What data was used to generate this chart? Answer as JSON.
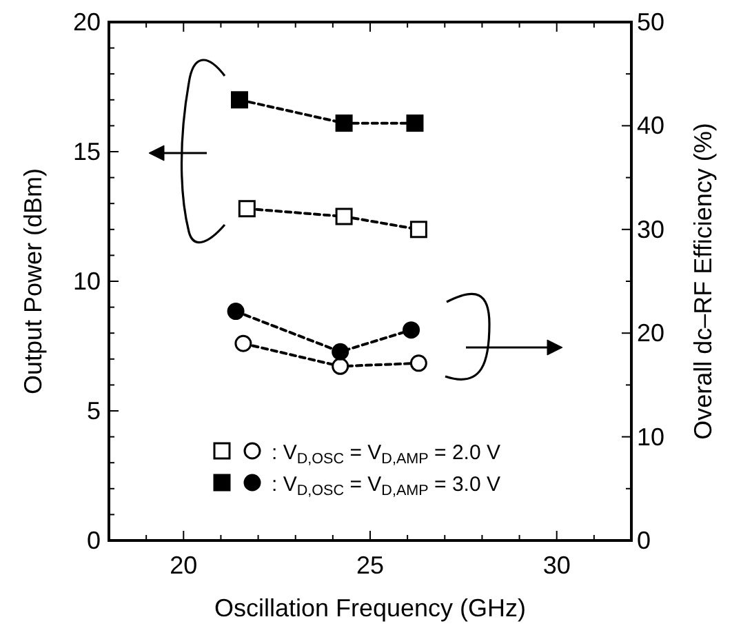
{
  "chart_data": {
    "type": "line",
    "xlabel": "Oscillation Frequency  (GHz)",
    "ylabel": "Output Power  (dBm)",
    "y2label": "Overall dc–RF Efficiency  (%)",
    "xlim": [
      18,
      32
    ],
    "xticks": [
      {
        "value": 18,
        "label": null
      },
      {
        "value": 19,
        "label": null
      },
      20,
      {
        "value": 21,
        "label": null
      },
      {
        "value": 22,
        "label": null
      },
      {
        "value": 23,
        "label": null
      },
      {
        "value": 24,
        "label": null
      },
      25,
      {
        "value": 26,
        "label": null
      },
      {
        "value": 27,
        "label": null
      },
      {
        "value": 28,
        "label": null
      },
      {
        "value": 29,
        "label": null
      },
      30,
      {
        "value": 31,
        "label": null
      }
    ],
    "ylim": [
      0,
      20
    ],
    "yticks": [
      0,
      {
        "value": 1,
        "label": null
      },
      {
        "value": 2,
        "label": null
      },
      {
        "value": 3,
        "label": null
      },
      {
        "value": 4,
        "label": null
      },
      5,
      {
        "value": 6,
        "label": null
      },
      {
        "value": 7,
        "label": null
      },
      {
        "value": 8,
        "label": null
      },
      {
        "value": 9,
        "label": null
      },
      10,
      {
        "value": 11,
        "label": null
      },
      {
        "value": 12,
        "label": null
      },
      {
        "value": 13,
        "label": null
      },
      {
        "value": 14,
        "label": null
      },
      15,
      {
        "value": 16,
        "label": null
      },
      {
        "value": 17,
        "label": null
      },
      {
        "value": 18,
        "label": null
      },
      {
        "value": 19,
        "label": null
      },
      20
    ],
    "y2lim": [
      0,
      50
    ],
    "y2ticks": [
      0,
      {
        "value": 5,
        "label": null
      },
      10,
      {
        "value": 15,
        "label": null
      },
      20,
      {
        "value": 25,
        "label": null
      },
      30,
      {
        "value": 35,
        "label": null
      },
      40,
      {
        "value": 45,
        "label": null
      },
      50
    ],
    "line_style": "dashed",
    "legend": "bottom",
    "series": [
      {
        "color": "#000000",
        "marker": "square-open",
        "x": [
          21.7,
          24.3,
          26.3
        ],
        "values": [
          12.8,
          12.5,
          12.0
        ]
      },
      {
        "name": ": V$_{D,OSC}$ = V$_{D,AMP}$ = 2.0 V",
        "color": "#000000",
        "marker": "circle-open",
        "axis": "y2",
        "x": [
          21.6,
          24.2,
          26.3
        ],
        "values": [
          19.0,
          16.8,
          17.1
        ]
      },
      {
        "color": "#000000",
        "marker": "square",
        "x": [
          21.5,
          24.3,
          26.2
        ],
        "values": [
          17.0,
          16.1,
          16.1
        ]
      },
      {
        "name": ": V$_{D,OSC}$ = V$_{D,AMP}$ = 3.0 V",
        "color": "#000000",
        "marker": "circle",
        "axis": "y2",
        "x": [
          21.4,
          24.2,
          26.1
        ],
        "values": [
          22.1,
          18.2,
          20.3
        ]
      }
    ]
  }
}
